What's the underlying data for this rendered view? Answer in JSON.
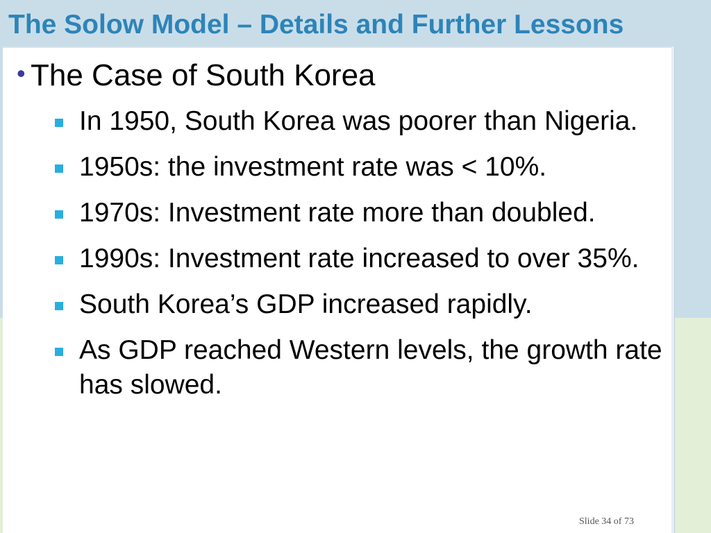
{
  "slide": {
    "title": "The Solow Model – Details and Further Lessons",
    "heading": "The Case of South Korea",
    "bullets": [
      "In 1950, South Korea was poorer than Nigeria.",
      "1950s: the investment rate was < 10%.",
      "1970s: Investment rate more than doubled.",
      "1990s:  Investment rate increased to over 35%.",
      "South Korea’s GDP increased rapidly.",
      "As GDP reached Western levels, the growth rate has slowed."
    ],
    "footer": "Slide 34 of 73"
  },
  "colors": {
    "title": "#2d84b8",
    "bullet_marker": "#29aee0",
    "heading_dot": "#3a3aa0",
    "bg_top": "#c9dde9",
    "bg_bottom": "#e3efd6"
  },
  "icons": {
    "heading_bullet": "round-bullet-icon",
    "sub_bullet": "square-bullet-icon"
  }
}
